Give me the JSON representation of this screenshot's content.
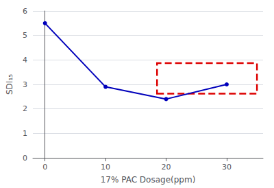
{
  "chart_data": {
    "type": "line",
    "x": [
      0,
      10,
      20,
      30
    ],
    "values": [
      5.5,
      2.9,
      2.4,
      3.0
    ],
    "color": "#0000bb",
    "marker": "circle",
    "xlabel": "17% PAC Dosage(ppm)",
    "ylabel": "SDI₁₅",
    "xlim": [
      -2,
      36
    ],
    "xticks": [
      0,
      10,
      20,
      30
    ],
    "ylim": [
      0,
      6
    ],
    "yticks": [
      0,
      1,
      2,
      3,
      4,
      5,
      6
    ],
    "grid": true,
    "rectangle": {
      "x": 18.5,
      "y": 2.62,
      "width": 16.5,
      "height": 1.25,
      "color": "#dd0000",
      "line_style": "dashed"
    }
  }
}
